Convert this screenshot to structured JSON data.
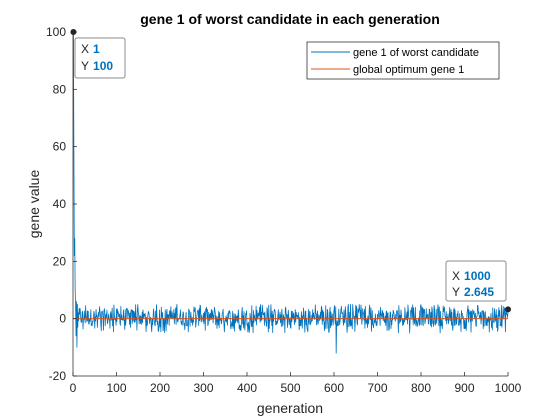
{
  "chart_data": {
    "type": "line",
    "title": "gene 1 of worst candidate in each generation",
    "xlabel": "generation",
    "ylabel": "gene value",
    "xlim": [
      0,
      1000
    ],
    "ylim": [
      -20,
      100
    ],
    "xticks": [
      0,
      100,
      200,
      300,
      400,
      500,
      600,
      700,
      800,
      900,
      1000
    ],
    "yticks": [
      -20,
      0,
      20,
      40,
      60,
      80,
      100
    ],
    "grid": false,
    "legend_position": "top-right",
    "series": [
      {
        "name": "gene 1 of worst candidate",
        "color": "#0072BD",
        "noisy_band": {
          "x_range": [
            12,
            1000
          ],
          "typical_range": [
            -5,
            5
          ],
          "min": -12,
          "min_at_x": 605
        },
        "points": [
          {
            "x": 1,
            "y": 100
          },
          {
            "x": 2,
            "y": 60
          },
          {
            "x": 3,
            "y": 22
          },
          {
            "x": 4,
            "y": 28
          },
          {
            "x": 5,
            "y": 10
          },
          {
            "x": 6,
            "y": 4
          },
          {
            "x": 7,
            "y": -6
          },
          {
            "x": 8,
            "y": 6
          },
          {
            "x": 9,
            "y": -10
          },
          {
            "x": 10,
            "y": 5
          },
          {
            "x": 11,
            "y": -3
          },
          {
            "x": 12,
            "y": 2
          },
          {
            "x": 1000,
            "y": 2.645
          }
        ]
      },
      {
        "name": "global optimum gene 1",
        "color": "#D95319",
        "points": [
          {
            "x": 0,
            "y": 0
          },
          {
            "x": 1000,
            "y": 0
          }
        ]
      }
    ],
    "datatips": [
      {
        "x_label": "X",
        "x_value": "1",
        "y_label": "Y",
        "y_value": "100",
        "at_x": 1,
        "at_y": 100
      },
      {
        "x_label": "X",
        "x_value": "1000",
        "y_label": "Y",
        "y_value": "2.645",
        "at_x": 1000,
        "at_y": 2.645
      }
    ]
  }
}
